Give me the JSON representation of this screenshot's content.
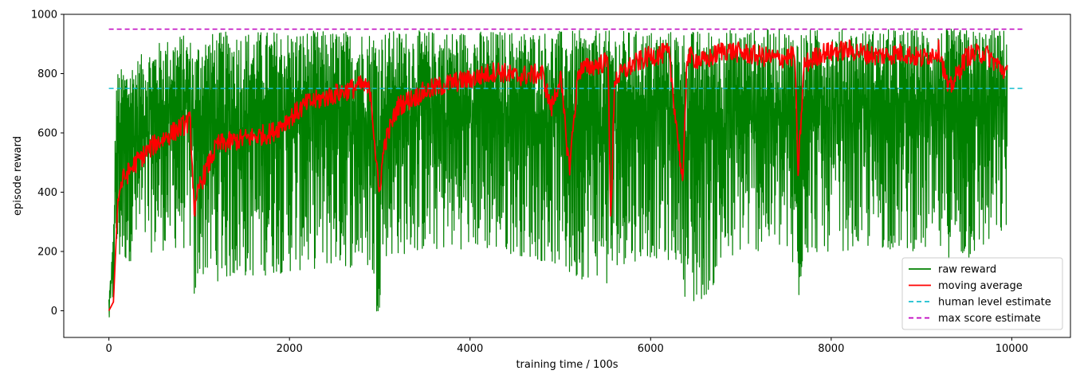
{
  "chart_data": {
    "type": "line",
    "xlabel": "training time / 100s",
    "ylabel": "episode reward",
    "xlim": [
      -500,
      10650
    ],
    "ylim": [
      -90,
      1000
    ],
    "xticks": [
      0,
      2000,
      4000,
      6000,
      8000,
      10000
    ],
    "yticks": [
      0,
      200,
      400,
      600,
      800,
      1000
    ],
    "legend_position": "lower-right",
    "grid": false,
    "series": [
      {
        "name": "raw reward",
        "color": "#008000",
        "style": "solid",
        "x": [
          0,
          50,
          80,
          100,
          300,
          500,
          800,
          900,
          960,
          1000,
          1200,
          1500,
          2000,
          2500,
          2900,
          2980,
          3050,
          3500,
          4000,
          4500,
          5000,
          5100,
          5500,
          5550,
          5600,
          6000,
          6350,
          6400,
          7000,
          7500,
          7630,
          7700,
          8000,
          8500,
          9000,
          9500,
          9950
        ],
        "min": [
          -40,
          20,
          100,
          140,
          180,
          200,
          210,
          200,
          -40,
          120,
          100,
          110,
          130,
          150,
          140,
          -40,
          180,
          200,
          210,
          190,
          150,
          100,
          120,
          -35,
          150,
          180,
          160,
          -30,
          200,
          200,
          -10,
          190,
          200,
          210,
          200,
          160,
          260
        ],
        "max": [
          45,
          260,
          780,
          810,
          850,
          900,
          935,
          920,
          880,
          930,
          940,
          945,
          945,
          945,
          945,
          940,
          945,
          945,
          945,
          945,
          945,
          945,
          945,
          945,
          945,
          945,
          945,
          945,
          950,
          950,
          945,
          950,
          950,
          950,
          950,
          950,
          950
        ]
      },
      {
        "name": "moving average",
        "color": "#ff0000",
        "style": "solid",
        "x": [
          0,
          50,
          100,
          150,
          300,
          500,
          700,
          900,
          950,
          1000,
          1200,
          1500,
          1800,
          2000,
          2200,
          2500,
          2800,
          2900,
          2990,
          3050,
          3200,
          3500,
          3800,
          4000,
          4300,
          4500,
          4800,
          4900,
          5000,
          5100,
          5200,
          5400,
          5530,
          5560,
          5600,
          5800,
          6000,
          6200,
          6360,
          6400,
          6600,
          6800,
          7000,
          7200,
          7400,
          7600,
          7630,
          7700,
          7900,
          8200,
          8500,
          8800,
          9000,
          9200,
          9300,
          9500,
          9700,
          9950
        ],
        "y": [
          0,
          30,
          380,
          440,
          500,
          560,
          600,
          640,
          320,
          420,
          560,
          580,
          600,
          650,
          700,
          730,
          760,
          740,
          390,
          560,
          690,
          740,
          770,
          780,
          810,
          790,
          800,
          680,
          790,
          480,
          810,
          830,
          840,
          280,
          780,
          830,
          860,
          870,
          420,
          860,
          840,
          880,
          870,
          860,
          850,
          860,
          450,
          830,
          870,
          880,
          860,
          870,
          850,
          880,
          740,
          860,
          870,
          800
        ]
      },
      {
        "name": "human level estimate",
        "color": "#17becf",
        "style": "dashed",
        "x": [
          0,
          10150
        ],
        "y": [
          750,
          750
        ]
      },
      {
        "name": "max score estimate",
        "color": "#bf00bf",
        "style": "dashed",
        "x": [
          0,
          10150
        ],
        "y": [
          950,
          950
        ]
      }
    ]
  }
}
